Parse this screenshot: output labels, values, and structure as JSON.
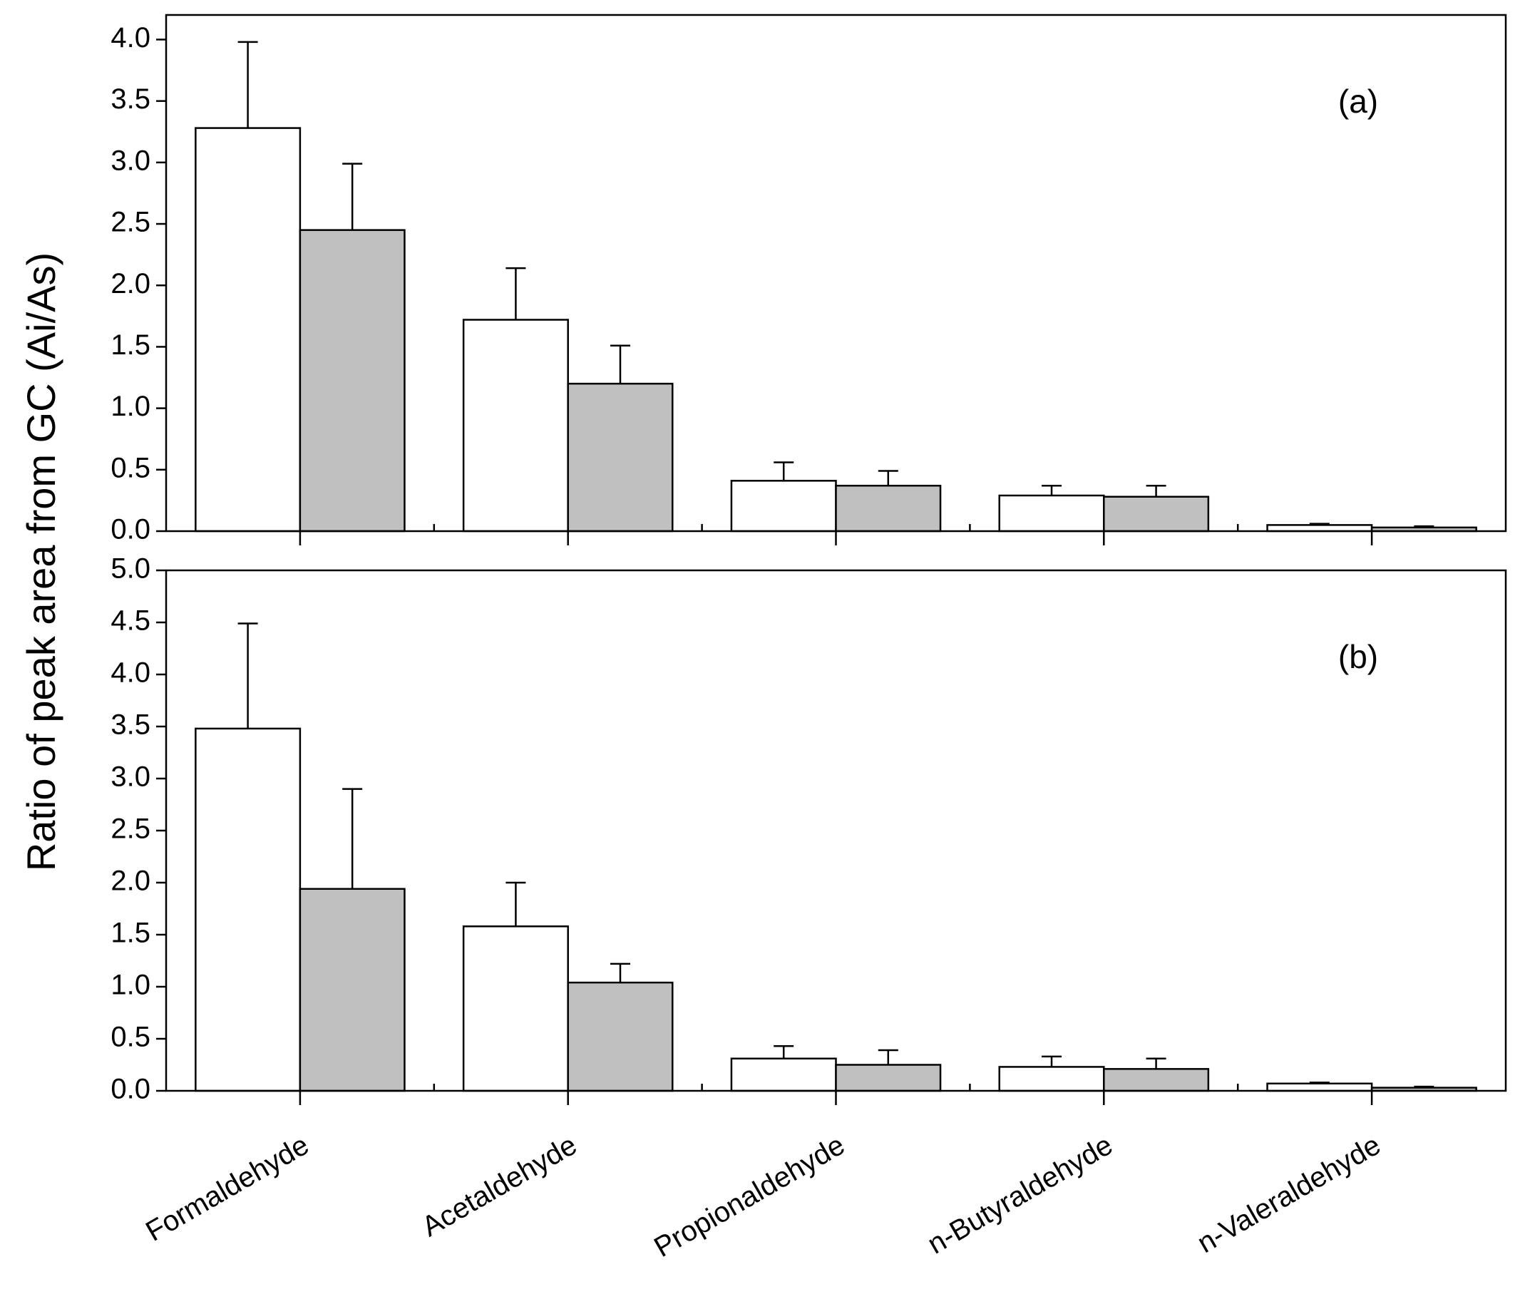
{
  "chart_data": [
    {
      "type": "bar",
      "annotation": "(a)",
      "ylabel": "Ratio of peak area from GC (Ai/As)",
      "ylim": [
        0,
        4.2
      ],
      "yticks": [
        {
          "value": 0,
          "label": "0.0"
        },
        0.5,
        {
          "value": 1,
          "label": "1.0"
        },
        1.5,
        {
          "value": 2,
          "label": "2.0"
        },
        2.5,
        {
          "value": 3,
          "label": "3.0"
        },
        3.5,
        {
          "value": 4,
          "label": "4.0"
        }
      ],
      "series": [
        {
          "color": "#ffffff",
          "values": [
            3.28,
            1.72,
            0.41,
            0.29,
            0.05
          ],
          "errors": [
            0.7,
            0.42,
            0.15,
            0.08,
            0.01
          ]
        },
        {
          "color": "#c0c0c0",
          "values": [
            2.45,
            1.2,
            0.37,
            0.28,
            0.03
          ],
          "errors": [
            0.54,
            0.31,
            0.12,
            0.09,
            0.01
          ]
        }
      ]
    },
    {
      "type": "bar",
      "annotation": "(b)",
      "categories": [
        "Formaldehyde",
        "Acetaldehyde",
        "Propionaldehyde",
        "n-Butyraldehyde",
        "n-Valeraldehyde"
      ],
      "ylim": [
        0,
        5.0
      ],
      "yticks": [
        {
          "value": 0,
          "label": "0.0"
        },
        0.5,
        {
          "value": 1,
          "label": "1.0"
        },
        1.5,
        {
          "value": 2,
          "label": "2.0"
        },
        2.5,
        {
          "value": 3,
          "label": "3.0"
        },
        3.5,
        {
          "value": 4,
          "label": "4.0"
        },
        4.5,
        {
          "value": 5,
          "label": "5.0"
        }
      ],
      "series": [
        {
          "color": "#ffffff",
          "values": [
            3.48,
            1.58,
            0.31,
            0.23,
            0.07
          ],
          "errors": [
            1.01,
            0.42,
            0.12,
            0.1,
            0.01
          ]
        },
        {
          "color": "#c0c0c0",
          "values": [
            1.94,
            1.04,
            0.25,
            0.21,
            0.03
          ],
          "errors": [
            0.96,
            0.18,
            0.14,
            0.1,
            0.01
          ]
        }
      ]
    }
  ]
}
